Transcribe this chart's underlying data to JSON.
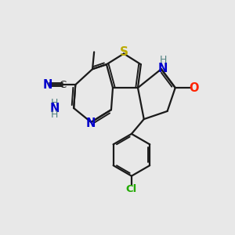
{
  "background_color": "#e8e8e8",
  "bond_color": "#1a1a1a",
  "bond_width": 1.6,
  "atom_colors": {
    "N": "#0000cc",
    "S": "#bbaa00",
    "O": "#ff2200",
    "Cl": "#22aa00",
    "H": "#508080",
    "C": "#1a1a1a"
  },
  "font_size": 9.5,
  "fig_size": [
    3.0,
    3.0
  ],
  "dpi": 100
}
